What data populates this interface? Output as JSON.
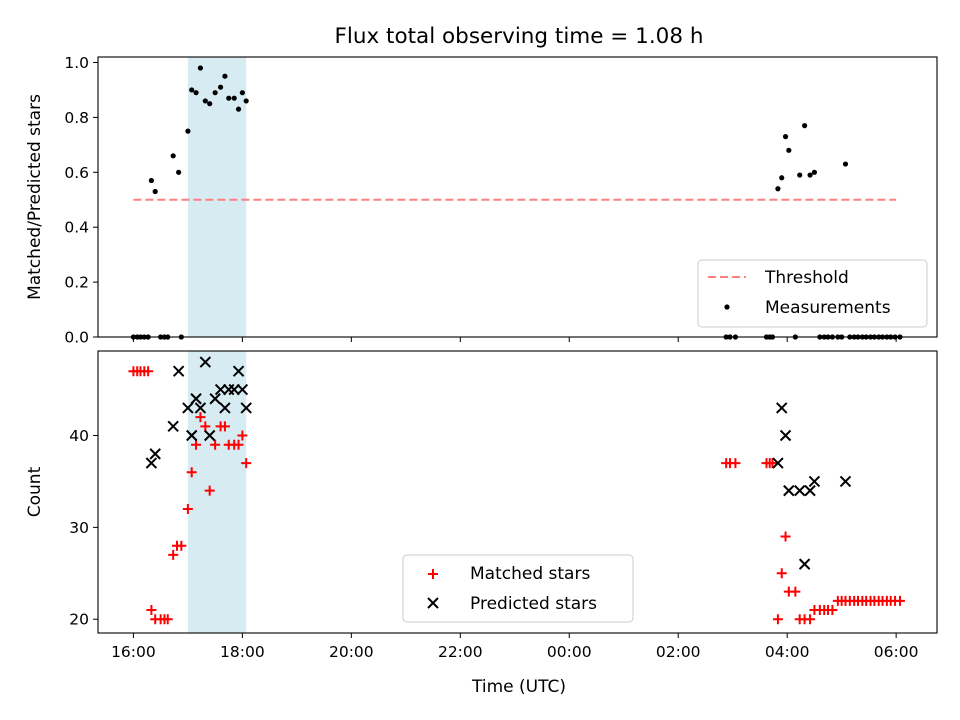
{
  "figure": {
    "title": "Flux total observing time = 1.08 h"
  },
  "colors": {
    "threshold": "#ff7f7f",
    "measurements": "#000000",
    "matched": "#ff0000",
    "predicted": "#000000",
    "span": "#add8e6"
  },
  "chart_data": [
    {
      "type": "scatter",
      "panel": "top",
      "ylabel": "Matched/Predicted stars",
      "ylim": [
        0,
        1.02
      ],
      "yticks": [
        "0.0",
        "0.2",
        "0.4",
        "0.6",
        "0.8",
        "1.0"
      ],
      "xlim": [
        -0.65,
        14.75
      ],
      "xticks": [
        "16:00",
        "18:00",
        "20:00",
        "22:00",
        "00:00",
        "02:00",
        "04:00",
        "06:00"
      ],
      "highlight_span": [
        1.0,
        2.07
      ],
      "legend_position": "lower right",
      "series": [
        {
          "name": "Threshold",
          "kind": "dashed-line",
          "y": 0.5,
          "x_range": [
            0,
            14.0
          ]
        },
        {
          "name": "Measurements",
          "kind": "dots",
          "points": [
            [
              0.0,
              0
            ],
            [
              0.07,
              0
            ],
            [
              0.13,
              0
            ],
            [
              0.2,
              0
            ],
            [
              0.27,
              0
            ],
            [
              0.33,
              0.57
            ],
            [
              0.4,
              0.53
            ],
            [
              0.5,
              0
            ],
            [
              0.57,
              0
            ],
            [
              0.63,
              0
            ],
            [
              0.73,
              0.66
            ],
            [
              0.83,
              0.6
            ],
            [
              0.88,
              0
            ],
            [
              1.0,
              0.75
            ],
            [
              1.07,
              0.9
            ],
            [
              1.15,
              0.89
            ],
            [
              1.23,
              0.98
            ],
            [
              1.32,
              0.86
            ],
            [
              1.4,
              0.85
            ],
            [
              1.5,
              0.89
            ],
            [
              1.6,
              0.91
            ],
            [
              1.68,
              0.95
            ],
            [
              1.75,
              0.87
            ],
            [
              1.85,
              0.87
            ],
            [
              1.93,
              0.83
            ],
            [
              2.0,
              0.89
            ],
            [
              2.07,
              0.86
            ],
            [
              10.88,
              0
            ],
            [
              10.95,
              0
            ],
            [
              11.05,
              0
            ],
            [
              11.62,
              0
            ],
            [
              11.68,
              0
            ],
            [
              11.73,
              0
            ],
            [
              11.83,
              0.54
            ],
            [
              11.9,
              0.58
            ],
            [
              11.97,
              0.73
            ],
            [
              12.03,
              0.68
            ],
            [
              12.15,
              0
            ],
            [
              12.23,
              0.59
            ],
            [
              12.32,
              0.77
            ],
            [
              12.42,
              0.59
            ],
            [
              12.5,
              0.6
            ],
            [
              12.6,
              0
            ],
            [
              12.68,
              0
            ],
            [
              12.75,
              0
            ],
            [
              12.83,
              0
            ],
            [
              12.93,
              0
            ],
            [
              13.0,
              0
            ],
            [
              13.07,
              0.63
            ],
            [
              13.15,
              0
            ],
            [
              13.23,
              0
            ],
            [
              13.3,
              0
            ],
            [
              13.38,
              0
            ],
            [
              13.45,
              0
            ],
            [
              13.53,
              0
            ],
            [
              13.6,
              0
            ],
            [
              13.68,
              0
            ],
            [
              13.75,
              0
            ],
            [
              13.83,
              0
            ],
            [
              13.9,
              0
            ],
            [
              13.98,
              0
            ],
            [
              14.07,
              0
            ]
          ]
        }
      ]
    },
    {
      "type": "scatter",
      "panel": "bottom",
      "ylabel": "Count",
      "xlabel": "Time (UTC)",
      "ylim": [
        18.5,
        49.2
      ],
      "yticks": [
        "20",
        "30",
        "40"
      ],
      "ytick_values": [
        20,
        30,
        40
      ],
      "xlim": [
        -0.65,
        14.75
      ],
      "xticks": [
        "16:00",
        "18:00",
        "20:00",
        "22:00",
        "00:00",
        "02:00",
        "04:00",
        "06:00"
      ],
      "highlight_span": [
        1.0,
        2.07
      ],
      "legend_position": "lower center",
      "series": [
        {
          "name": "Matched stars",
          "marker": "plus",
          "points": [
            [
              0.0,
              47
            ],
            [
              0.07,
              47
            ],
            [
              0.13,
              47
            ],
            [
              0.2,
              47
            ],
            [
              0.27,
              47
            ],
            [
              0.33,
              21
            ],
            [
              0.4,
              20
            ],
            [
              0.5,
              20
            ],
            [
              0.57,
              20
            ],
            [
              0.63,
              20
            ],
            [
              0.73,
              27
            ],
            [
              0.8,
              28
            ],
            [
              0.88,
              28
            ],
            [
              1.0,
              32
            ],
            [
              1.07,
              36
            ],
            [
              1.15,
              39
            ],
            [
              1.23,
              42
            ],
            [
              1.32,
              41
            ],
            [
              1.4,
              34
            ],
            [
              1.5,
              39
            ],
            [
              1.6,
              41
            ],
            [
              1.68,
              41
            ],
            [
              1.75,
              39
            ],
            [
              1.85,
              39
            ],
            [
              1.93,
              39
            ],
            [
              2.0,
              40
            ],
            [
              2.07,
              37
            ],
            [
              10.88,
              37
            ],
            [
              10.95,
              37
            ],
            [
              11.05,
              37
            ],
            [
              11.62,
              37
            ],
            [
              11.68,
              37
            ],
            [
              11.73,
              37
            ],
            [
              11.83,
              20
            ],
            [
              11.9,
              25
            ],
            [
              11.97,
              29
            ],
            [
              12.03,
              23
            ],
            [
              12.15,
              23
            ],
            [
              12.23,
              20
            ],
            [
              12.32,
              20
            ],
            [
              12.42,
              20
            ],
            [
              12.5,
              21
            ],
            [
              12.6,
              21
            ],
            [
              12.68,
              21
            ],
            [
              12.75,
              21
            ],
            [
              12.83,
              21
            ],
            [
              12.93,
              22
            ],
            [
              13.0,
              22
            ],
            [
              13.07,
              22
            ],
            [
              13.15,
              22
            ],
            [
              13.23,
              22
            ],
            [
              13.3,
              22
            ],
            [
              13.38,
              22
            ],
            [
              13.45,
              22
            ],
            [
              13.53,
              22
            ],
            [
              13.6,
              22
            ],
            [
              13.68,
              22
            ],
            [
              13.75,
              22
            ],
            [
              13.83,
              22
            ],
            [
              13.9,
              22
            ],
            [
              13.98,
              22
            ],
            [
              14.07,
              22
            ]
          ]
        },
        {
          "name": "Predicted stars",
          "marker": "x",
          "points": [
            [
              0.33,
              37
            ],
            [
              0.4,
              38
            ],
            [
              0.73,
              41
            ],
            [
              0.83,
              47
            ],
            [
              1.0,
              43
            ],
            [
              1.07,
              40
            ],
            [
              1.15,
              44
            ],
            [
              1.23,
              43
            ],
            [
              1.32,
              48
            ],
            [
              1.4,
              40
            ],
            [
              1.5,
              44
            ],
            [
              1.6,
              45
            ],
            [
              1.68,
              43
            ],
            [
              1.75,
              45
            ],
            [
              1.85,
              45
            ],
            [
              1.93,
              47
            ],
            [
              2.0,
              45
            ],
            [
              2.07,
              43
            ],
            [
              11.83,
              37
            ],
            [
              11.9,
              43
            ],
            [
              11.97,
              40
            ],
            [
              12.03,
              34
            ],
            [
              12.23,
              34
            ],
            [
              12.32,
              26
            ],
            [
              12.42,
              34
            ],
            [
              12.5,
              35
            ],
            [
              13.07,
              35
            ]
          ]
        }
      ]
    }
  ]
}
